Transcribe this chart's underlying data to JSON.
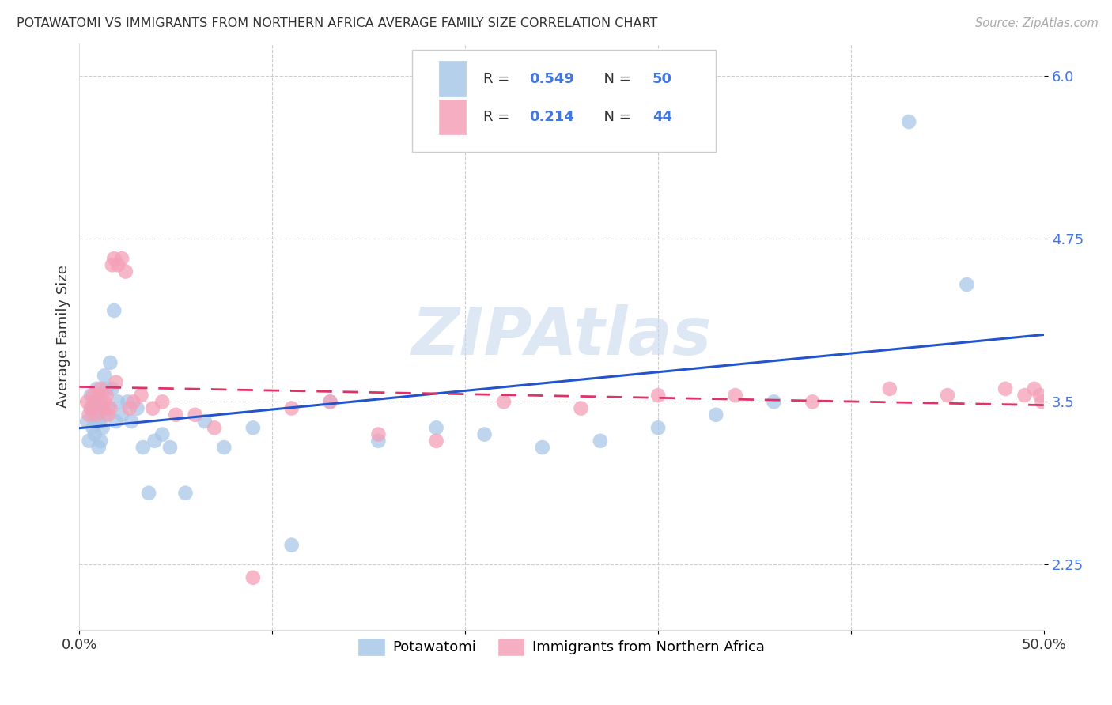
{
  "title": "POTAWATOMI VS IMMIGRANTS FROM NORTHERN AFRICA AVERAGE FAMILY SIZE CORRELATION CHART",
  "source": "Source: ZipAtlas.com",
  "ylabel": "Average Family Size",
  "xlim": [
    0.0,
    0.5
  ],
  "ylim": [
    1.75,
    6.25
  ],
  "yticks": [
    2.25,
    3.5,
    4.75,
    6.0
  ],
  "xtick_vals": [
    0.0,
    0.1,
    0.2,
    0.3,
    0.4,
    0.5
  ],
  "xtick_labels": [
    "0.0%",
    "",
    "",
    "",
    "",
    "50.0%"
  ],
  "grid_color": "#cccccc",
  "watermark": "ZIPAtlas",
  "series1_color": "#a8c8e8",
  "series2_color": "#f4a0b8",
  "series1_label": "Potawatomi",
  "series2_label": "Immigrants from Northern Africa",
  "series1_R": "0.549",
  "series1_N": "50",
  "series2_R": "0.214",
  "series2_N": "44",
  "line1_color": "#2255cc",
  "line2_color": "#dd3366",
  "ytick_color": "#4477dd",
  "label_color": "#333333",
  "background_color": "#ffffff",
  "scatter1_x": [
    0.004,
    0.005,
    0.006,
    0.006,
    0.007,
    0.007,
    0.008,
    0.008,
    0.009,
    0.009,
    0.01,
    0.01,
    0.011,
    0.011,
    0.012,
    0.012,
    0.013,
    0.013,
    0.014,
    0.015,
    0.016,
    0.017,
    0.018,
    0.019,
    0.02,
    0.022,
    0.025,
    0.027,
    0.03,
    0.033,
    0.036,
    0.039,
    0.043,
    0.047,
    0.055,
    0.065,
    0.075,
    0.09,
    0.11,
    0.13,
    0.155,
    0.185,
    0.21,
    0.24,
    0.27,
    0.3,
    0.33,
    0.36,
    0.43,
    0.46
  ],
  "scatter1_y": [
    3.35,
    3.2,
    3.45,
    3.55,
    3.4,
    3.3,
    3.25,
    3.5,
    3.45,
    3.6,
    3.15,
    3.35,
    3.5,
    3.2,
    3.45,
    3.3,
    3.7,
    3.4,
    3.6,
    3.45,
    3.8,
    3.6,
    4.2,
    3.35,
    3.5,
    3.4,
    3.5,
    3.35,
    3.45,
    3.15,
    2.8,
    3.2,
    3.25,
    3.15,
    2.8,
    3.35,
    3.15,
    3.3,
    2.4,
    3.5,
    3.2,
    3.3,
    3.25,
    3.15,
    3.2,
    3.3,
    3.4,
    3.5,
    5.65,
    4.4
  ],
  "scatter2_x": [
    0.004,
    0.005,
    0.006,
    0.007,
    0.008,
    0.009,
    0.01,
    0.011,
    0.012,
    0.013,
    0.014,
    0.015,
    0.016,
    0.017,
    0.018,
    0.019,
    0.02,
    0.022,
    0.024,
    0.026,
    0.028,
    0.032,
    0.038,
    0.043,
    0.05,
    0.06,
    0.07,
    0.09,
    0.11,
    0.13,
    0.155,
    0.185,
    0.22,
    0.26,
    0.3,
    0.34,
    0.38,
    0.42,
    0.45,
    0.48,
    0.49,
    0.495,
    0.498,
    0.499
  ],
  "scatter2_y": [
    3.5,
    3.4,
    3.45,
    3.55,
    3.5,
    3.4,
    3.55,
    3.6,
    3.45,
    3.5,
    3.55,
    3.4,
    3.45,
    4.55,
    4.6,
    3.65,
    4.55,
    4.6,
    4.5,
    3.45,
    3.5,
    3.55,
    3.45,
    3.5,
    3.4,
    3.4,
    3.3,
    2.15,
    3.45,
    3.5,
    3.25,
    3.2,
    3.5,
    3.45,
    3.55,
    3.55,
    3.5,
    3.6,
    3.55,
    3.6,
    3.55,
    3.6,
    3.55,
    3.5
  ]
}
